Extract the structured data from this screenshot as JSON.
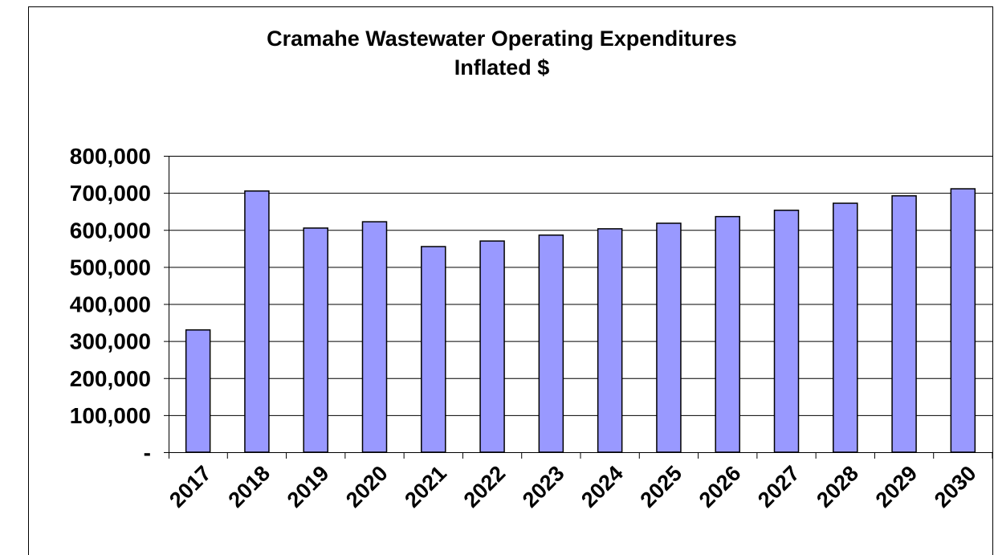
{
  "chart_data": {
    "type": "bar",
    "title": "Cramahe Wastewater Operating Expenditures",
    "subtitle": "Inflated $",
    "categories": [
      "2017",
      "2018",
      "2019",
      "2020",
      "2021",
      "2022",
      "2023",
      "2024",
      "2025",
      "2026",
      "2027",
      "2028",
      "2029",
      "2030"
    ],
    "values": [
      330000,
      705000,
      605000,
      622000,
      555000,
      570000,
      586000,
      603000,
      618000,
      636000,
      653000,
      672000,
      692000,
      711000
    ],
    "color": "#9999ff",
    "ylim": [
      0,
      800000
    ],
    "yticks": [
      {
        "value": 0,
        "label": "-"
      },
      {
        "value": 100000,
        "label": "100,000"
      },
      {
        "value": 200000,
        "label": "200,000"
      },
      {
        "value": 300000,
        "label": "300,000"
      },
      {
        "value": 400000,
        "label": "400,000"
      },
      {
        "value": 500000,
        "label": "500,000"
      },
      {
        "value": 600000,
        "label": "600,000"
      },
      {
        "value": 700000,
        "label": "700,000"
      },
      {
        "value": 800000,
        "label": "800,000"
      }
    ],
    "grid": true
  }
}
